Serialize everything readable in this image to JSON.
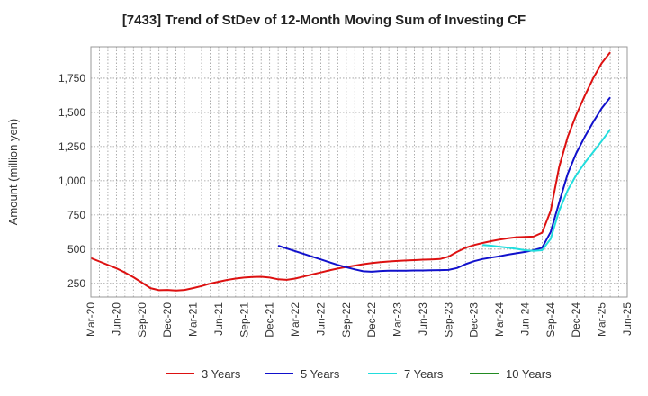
{
  "chart_data": {
    "type": "line",
    "title": "[7433]  Trend of StDev of 12-Month Moving Sum of Investing CF",
    "xlabel": "",
    "ylabel": "Amount (million yen)",
    "ylim": [
      150,
      1980
    ],
    "yticks": [
      250,
      500,
      750,
      1000,
      1250,
      1500,
      1750
    ],
    "ytick_labels": [
      "250",
      "500",
      "750",
      "1,000",
      "1,250",
      "1,500",
      "1,750"
    ],
    "xlim": [
      "2020-03",
      "2025-06"
    ],
    "x_tick_labels": [
      "Mar-20",
      "Jun-20",
      "Sep-20",
      "Dec-20",
      "Mar-21",
      "Jun-21",
      "Sep-21",
      "Dec-21",
      "Mar-22",
      "Jun-22",
      "Sep-22",
      "Dec-22",
      "Mar-23",
      "Jun-23",
      "Sep-23",
      "Dec-23",
      "Mar-24",
      "Jun-24",
      "Sep-24",
      "Dec-24",
      "Mar-25",
      "Jun-25"
    ],
    "grid": true,
    "legend_position": "bottom",
    "series": [
      {
        "name": "3 Years",
        "color": "#dd1111",
        "points": [
          [
            "2020-03",
            435
          ],
          [
            "2020-04",
            410
          ],
          [
            "2020-05",
            385
          ],
          [
            "2020-06",
            360
          ],
          [
            "2020-07",
            330
          ],
          [
            "2020-08",
            295
          ],
          [
            "2020-09",
            255
          ],
          [
            "2020-10",
            215
          ],
          [
            "2020-11",
            200
          ],
          [
            "2020-12",
            202
          ],
          [
            "2021-01",
            198
          ],
          [
            "2021-02",
            202
          ],
          [
            "2021-03",
            215
          ],
          [
            "2021-04",
            230
          ],
          [
            "2021-05",
            248
          ],
          [
            "2021-06",
            262
          ],
          [
            "2021-07",
            275
          ],
          [
            "2021-08",
            285
          ],
          [
            "2021-09",
            292
          ],
          [
            "2021-10",
            296
          ],
          [
            "2021-11",
            298
          ],
          [
            "2021-12",
            292
          ],
          [
            "2022-01",
            280
          ],
          [
            "2022-02",
            276
          ],
          [
            "2022-03",
            285
          ],
          [
            "2022-04",
            300
          ],
          [
            "2022-05",
            315
          ],
          [
            "2022-06",
            330
          ],
          [
            "2022-07",
            345
          ],
          [
            "2022-08",
            358
          ],
          [
            "2022-09",
            370
          ],
          [
            "2022-10",
            380
          ],
          [
            "2022-11",
            390
          ],
          [
            "2022-12",
            398
          ],
          [
            "2023-01",
            405
          ],
          [
            "2023-02",
            410
          ],
          [
            "2023-03",
            414
          ],
          [
            "2023-04",
            417
          ],
          [
            "2023-05",
            420
          ],
          [
            "2023-06",
            423
          ],
          [
            "2023-07",
            425
          ],
          [
            "2023-08",
            428
          ],
          [
            "2023-09",
            445
          ],
          [
            "2023-10",
            480
          ],
          [
            "2023-11",
            510
          ],
          [
            "2023-12",
            530
          ],
          [
            "2024-01",
            545
          ],
          [
            "2024-02",
            558
          ],
          [
            "2024-03",
            570
          ],
          [
            "2024-04",
            580
          ],
          [
            "2024-05",
            587
          ],
          [
            "2024-06",
            590
          ],
          [
            "2024-07",
            592
          ],
          [
            "2024-08",
            620
          ],
          [
            "2024-09",
            780
          ],
          [
            "2024-10",
            1100
          ],
          [
            "2024-11",
            1320
          ],
          [
            "2024-12",
            1480
          ],
          [
            "2025-01",
            1620
          ],
          [
            "2025-02",
            1750
          ],
          [
            "2025-03",
            1860
          ],
          [
            "2025-04",
            1940
          ]
        ]
      },
      {
        "name": "5 Years",
        "color": "#1111cc",
        "points": [
          [
            "2022-01",
            525
          ],
          [
            "2022-02",
            505
          ],
          [
            "2022-03",
            485
          ],
          [
            "2022-04",
            465
          ],
          [
            "2022-05",
            445
          ],
          [
            "2022-06",
            425
          ],
          [
            "2022-07",
            405
          ],
          [
            "2022-08",
            385
          ],
          [
            "2022-09",
            368
          ],
          [
            "2022-10",
            352
          ],
          [
            "2022-11",
            338
          ],
          [
            "2022-12",
            335
          ],
          [
            "2023-01",
            340
          ],
          [
            "2023-02",
            342
          ],
          [
            "2023-03",
            343
          ],
          [
            "2023-04",
            343
          ],
          [
            "2023-05",
            344
          ],
          [
            "2023-06",
            344
          ],
          [
            "2023-07",
            346
          ],
          [
            "2023-08",
            347
          ],
          [
            "2023-09",
            348
          ],
          [
            "2023-10",
            362
          ],
          [
            "2023-11",
            390
          ],
          [
            "2023-12",
            412
          ],
          [
            "2024-01",
            428
          ],
          [
            "2024-02",
            438
          ],
          [
            "2024-03",
            448
          ],
          [
            "2024-04",
            460
          ],
          [
            "2024-05",
            470
          ],
          [
            "2024-06",
            480
          ],
          [
            "2024-07",
            492
          ],
          [
            "2024-08",
            510
          ],
          [
            "2024-09",
            625
          ],
          [
            "2024-10",
            840
          ],
          [
            "2024-11",
            1050
          ],
          [
            "2024-12",
            1200
          ],
          [
            "2025-01",
            1320
          ],
          [
            "2025-02",
            1430
          ],
          [
            "2025-03",
            1530
          ],
          [
            "2025-04",
            1610
          ]
        ]
      },
      {
        "name": "7 Years",
        "color": "#22dddd",
        "points": [
          [
            "2024-01",
            530
          ],
          [
            "2024-02",
            525
          ],
          [
            "2024-03",
            518
          ],
          [
            "2024-04",
            510
          ],
          [
            "2024-05",
            502
          ],
          [
            "2024-06",
            492
          ],
          [
            "2024-07",
            488
          ],
          [
            "2024-08",
            492
          ],
          [
            "2024-09",
            575
          ],
          [
            "2024-10",
            780
          ],
          [
            "2024-11",
            930
          ],
          [
            "2024-12",
            1040
          ],
          [
            "2025-01",
            1130
          ],
          [
            "2025-02",
            1210
          ],
          [
            "2025-03",
            1290
          ],
          [
            "2025-04",
            1375
          ]
        ]
      },
      {
        "name": "10 Years",
        "color": "#228b22",
        "points": []
      }
    ]
  }
}
